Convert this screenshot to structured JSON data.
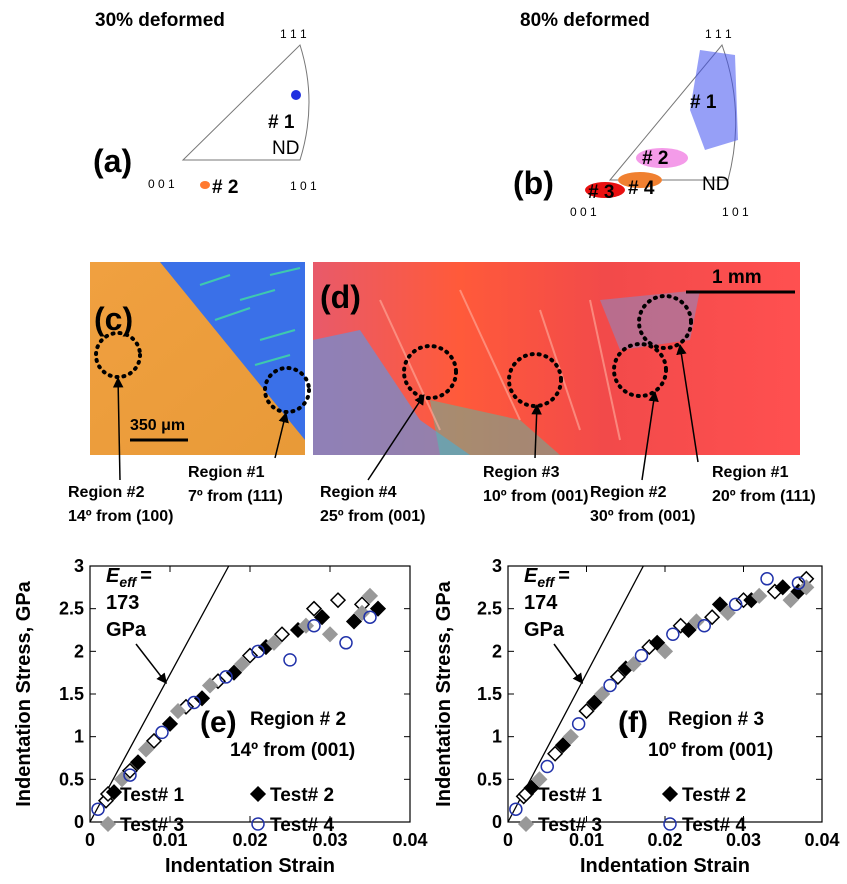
{
  "panels": {
    "a": {
      "title": "30% deformed",
      "label": "(a)",
      "poles": [
        "1 1 1",
        "0 0 1",
        "1 0 1"
      ],
      "axis": "ND",
      "groups": [
        "# 1",
        "# 2"
      ]
    },
    "b": {
      "title": "80% deformed",
      "label": "(b)",
      "poles": [
        "1 1 1",
        "0 0 1",
        "1 0 1"
      ],
      "axis": "ND",
      "groups": [
        "# 1",
        "# 2",
        "# 3",
        "# 4"
      ]
    },
    "c": {
      "label": "(c)",
      "scale_bar": "350 μm",
      "regions": [
        {
          "name": "Region #2",
          "orientation": "14º from (100)"
        },
        {
          "name": "Region #1",
          "orientation": "7º from (111)"
        }
      ]
    },
    "d": {
      "label": "(d)",
      "scale_bar": "1 mm",
      "regions": [
        {
          "name": "Region #4",
          "orientation": "25º from (001)"
        },
        {
          "name": "Region #3",
          "orientation": "10º from (001)"
        },
        {
          "name": "Region #2",
          "orientation": "30º from (001)"
        },
        {
          "name": "Region #1",
          "orientation": "20º from (111)"
        }
      ]
    }
  },
  "chart_data": [
    {
      "type": "scatter",
      "panel_label": "(e)",
      "region": "Region # 2",
      "orientation": "14º from (001)",
      "x_label": "Indentation Strain",
      "y_label": "Indentation Stress, GPa",
      "xlim": [
        0,
        0.04
      ],
      "xticks": [
        0,
        0.01,
        0.02,
        0.03,
        0.04
      ],
      "ylim": [
        0,
        3
      ],
      "yticks": [
        0,
        0.5,
        1,
        1.5,
        2,
        2.5,
        3
      ],
      "annotation": {
        "symbol": "E",
        "subscript": "eff",
        "equals": "=",
        "modulus": 173,
        "unit": "GPa"
      },
      "series": [
        {
          "name": "Test# 1",
          "color": "#000000",
          "marker": "diamond-open",
          "x": [
            0.002,
            0.005,
            0.008,
            0.012,
            0.016,
            0.02,
            0.024,
            0.028,
            0.031,
            0.034
          ],
          "values": [
            0.25,
            0.6,
            0.95,
            1.35,
            1.65,
            1.95,
            2.2,
            2.5,
            2.6,
            2.55
          ]
        },
        {
          "name": "Test# 2",
          "color": "#000000",
          "marker": "diamond",
          "x": [
            0.003,
            0.006,
            0.01,
            0.014,
            0.018,
            0.022,
            0.026,
            0.029,
            0.033,
            0.036
          ],
          "values": [
            0.35,
            0.7,
            1.15,
            1.45,
            1.75,
            2.05,
            2.25,
            2.4,
            2.35,
            2.5
          ]
        },
        {
          "name": "Test# 3",
          "color": "#999999",
          "marker": "diamond",
          "x": [
            0.004,
            0.007,
            0.011,
            0.015,
            0.019,
            0.023,
            0.027,
            0.03,
            0.034,
            0.035
          ],
          "values": [
            0.5,
            0.85,
            1.3,
            1.6,
            1.85,
            2.1,
            2.3,
            2.2,
            2.45,
            2.65
          ]
        },
        {
          "name": "Test# 4",
          "color": "#2233aa",
          "marker": "circle-open",
          "x": [
            0.001,
            0.005,
            0.009,
            0.013,
            0.017,
            0.021,
            0.025,
            0.028,
            0.032,
            0.035
          ],
          "values": [
            0.15,
            0.55,
            1.05,
            1.4,
            1.7,
            2.0,
            1.9,
            2.3,
            2.1,
            2.4
          ]
        }
      ]
    },
    {
      "type": "scatter",
      "panel_label": "(f)",
      "region": "Region # 3",
      "orientation": "10º from (001)",
      "x_label": "Indentation Strain",
      "y_label": "Indentation Stress, GPa",
      "xlim": [
        0,
        0.04
      ],
      "xticks": [
        0,
        0.01,
        0.02,
        0.03,
        0.04
      ],
      "ylim": [
        0,
        3
      ],
      "yticks": [
        0,
        0.5,
        1,
        1.5,
        2,
        2.5,
        3
      ],
      "annotation": {
        "symbol": "E",
        "subscript": "eff",
        "equals": "=",
        "modulus": 174,
        "unit": "GPa"
      },
      "series": [
        {
          "name": "Test# 1",
          "color": "#000000",
          "marker": "diamond-open",
          "x": [
            0.002,
            0.006,
            0.01,
            0.014,
            0.018,
            0.022,
            0.026,
            0.03,
            0.034,
            0.038
          ],
          "values": [
            0.3,
            0.8,
            1.3,
            1.7,
            2.05,
            2.3,
            2.4,
            2.6,
            2.7,
            2.85
          ]
        },
        {
          "name": "Test# 2",
          "color": "#000000",
          "marker": "diamond",
          "x": [
            0.003,
            0.007,
            0.011,
            0.015,
            0.019,
            0.023,
            0.027,
            0.031,
            0.035,
            0.037
          ],
          "values": [
            0.4,
            0.9,
            1.4,
            1.8,
            2.1,
            2.25,
            2.55,
            2.6,
            2.75,
            2.7
          ]
        },
        {
          "name": "Test# 3",
          "color": "#999999",
          "marker": "diamond",
          "x": [
            0.004,
            0.008,
            0.012,
            0.016,
            0.02,
            0.024,
            0.028,
            0.032,
            0.036,
            0.038
          ],
          "values": [
            0.5,
            1.0,
            1.5,
            1.85,
            2.0,
            2.35,
            2.45,
            2.65,
            2.6,
            2.75
          ]
        },
        {
          "name": "Test# 4",
          "color": "#2233aa",
          "marker": "circle-open",
          "x": [
            0.001,
            0.005,
            0.009,
            0.013,
            0.017,
            0.021,
            0.025,
            0.029,
            0.033,
            0.037
          ],
          "values": [
            0.15,
            0.65,
            1.15,
            1.6,
            1.95,
            2.2,
            2.3,
            2.55,
            2.85,
            2.8
          ]
        }
      ]
    }
  ]
}
